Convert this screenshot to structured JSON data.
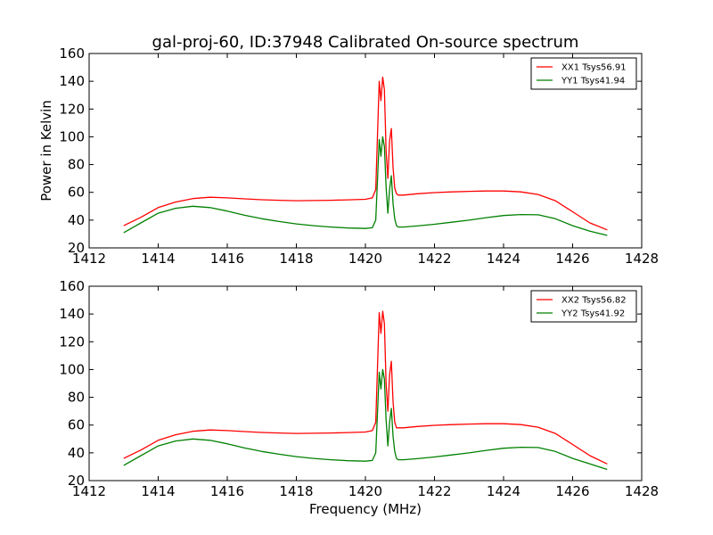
{
  "title": "gal-proj-60, ID:37948 Calibrated On-source spectrum",
  "chart_data": [
    {
      "type": "line",
      "title": "gal-proj-60, ID:37948 Calibrated On-source spectrum",
      "xlabel": "",
      "ylabel": "Power in Kelvin",
      "xlim": [
        1412,
        1428
      ],
      "ylim": [
        20,
        160
      ],
      "xticks": [
        "1412",
        "1414",
        "1416",
        "1418",
        "1420",
        "1422",
        "1424",
        "1426",
        "1428"
      ],
      "yticks": [
        "20",
        "40",
        "60",
        "80",
        "100",
        "120",
        "140",
        "160"
      ],
      "legend_position": "top-right",
      "grid": false,
      "series": [
        {
          "name": "XX1 Tsys56.91",
          "color": "#ff0000",
          "x": [
            1413.0,
            1413.5,
            1414.0,
            1414.5,
            1415.0,
            1415.5,
            1416.0,
            1416.5,
            1417.0,
            1417.5,
            1418.0,
            1418.5,
            1419.0,
            1419.5,
            1420.0,
            1420.2,
            1420.3,
            1420.4,
            1420.45,
            1420.5,
            1420.55,
            1420.6,
            1420.65,
            1420.7,
            1420.75,
            1420.8,
            1420.85,
            1420.9,
            1420.95,
            1421.0,
            1421.1,
            1421.5,
            1422.0,
            1422.5,
            1423.0,
            1423.5,
            1424.0,
            1424.5,
            1425.0,
            1425.5,
            1426.0,
            1426.5,
            1427.0
          ],
          "values": [
            36,
            42,
            49,
            53,
            55.5,
            56.5,
            56,
            55.3,
            54.7,
            54.3,
            54,
            54.1,
            54.3,
            54.6,
            55,
            56,
            62,
            140,
            126,
            143,
            134,
            90,
            70,
            97,
            106,
            78,
            63,
            59,
            58,
            58,
            58,
            59,
            59.8,
            60.3,
            60.7,
            61,
            61,
            60.3,
            58.5,
            54,
            46,
            38,
            33
          ]
        },
        {
          "name": "YY1 Tsys41.94",
          "color": "#008000",
          "x": [
            1413.0,
            1413.5,
            1414.0,
            1414.5,
            1415.0,
            1415.5,
            1416.0,
            1416.5,
            1417.0,
            1417.5,
            1418.0,
            1418.5,
            1419.0,
            1419.5,
            1420.0,
            1420.2,
            1420.3,
            1420.4,
            1420.45,
            1420.5,
            1420.55,
            1420.6,
            1420.65,
            1420.7,
            1420.75,
            1420.8,
            1420.85,
            1420.9,
            1420.95,
            1421.0,
            1421.1,
            1421.5,
            1422.0,
            1422.5,
            1423.0,
            1423.5,
            1424.0,
            1424.5,
            1425.0,
            1425.5,
            1426.0,
            1426.5,
            1427.0
          ],
          "values": [
            31,
            38,
            45,
            48.5,
            50,
            49,
            46.5,
            43.5,
            41,
            39,
            37.3,
            36,
            35,
            34.3,
            34,
            34.5,
            40,
            98,
            86,
            100,
            93,
            64,
            45,
            62,
            72,
            52,
            41,
            36,
            35,
            35,
            35,
            35.8,
            37,
            38.5,
            40,
            41.8,
            43.3,
            44,
            43.8,
            41,
            36,
            32,
            29
          ]
        }
      ]
    },
    {
      "type": "line",
      "title": "",
      "xlabel": "Frequency (MHz)",
      "ylabel": "",
      "xlim": [
        1412,
        1428
      ],
      "ylim": [
        20,
        160
      ],
      "xticks": [
        "1412",
        "1414",
        "1416",
        "1418",
        "1420",
        "1422",
        "1424",
        "1426",
        "1428"
      ],
      "yticks": [
        "20",
        "40",
        "60",
        "80",
        "100",
        "120",
        "140",
        "160"
      ],
      "legend_position": "top-right",
      "grid": false,
      "series": [
        {
          "name": "XX2 Tsys56.82",
          "color": "#ff0000",
          "x": [
            1413.0,
            1413.5,
            1414.0,
            1414.5,
            1415.0,
            1415.5,
            1416.0,
            1416.5,
            1417.0,
            1417.5,
            1418.0,
            1418.5,
            1419.0,
            1419.5,
            1420.0,
            1420.2,
            1420.3,
            1420.4,
            1420.45,
            1420.5,
            1420.55,
            1420.6,
            1420.65,
            1420.7,
            1420.75,
            1420.8,
            1420.85,
            1420.9,
            1420.95,
            1421.0,
            1421.1,
            1421.5,
            1422.0,
            1422.5,
            1423.0,
            1423.5,
            1424.0,
            1424.5,
            1425.0,
            1425.5,
            1426.0,
            1426.5,
            1427.0
          ],
          "values": [
            36,
            42,
            49,
            53,
            55.5,
            56.5,
            56,
            55.3,
            54.7,
            54.3,
            54,
            54.1,
            54.3,
            54.6,
            55,
            56,
            62,
            141,
            126,
            142,
            133,
            90,
            70,
            96,
            106,
            77,
            62,
            58,
            58,
            58,
            58,
            59,
            59.8,
            60.3,
            60.7,
            61,
            61,
            60.3,
            58.5,
            54,
            46,
            38,
            32
          ]
        },
        {
          "name": "YY2 Tsys41.92",
          "color": "#008000",
          "x": [
            1413.0,
            1413.5,
            1414.0,
            1414.5,
            1415.0,
            1415.5,
            1416.0,
            1416.5,
            1417.0,
            1417.5,
            1418.0,
            1418.5,
            1419.0,
            1419.5,
            1420.0,
            1420.2,
            1420.3,
            1420.4,
            1420.45,
            1420.5,
            1420.55,
            1420.6,
            1420.65,
            1420.7,
            1420.75,
            1420.8,
            1420.85,
            1420.9,
            1420.95,
            1421.0,
            1421.1,
            1421.5,
            1422.0,
            1422.5,
            1423.0,
            1423.5,
            1424.0,
            1424.5,
            1425.0,
            1425.5,
            1426.0,
            1426.5,
            1427.0
          ],
          "values": [
            31,
            38,
            45,
            48.5,
            50,
            49,
            46.5,
            43.5,
            41,
            39,
            37.3,
            36,
            35,
            34.3,
            34,
            34.5,
            40,
            98,
            86,
            100,
            93,
            64,
            45,
            62,
            72,
            52,
            41,
            36,
            35,
            35,
            35,
            35.8,
            37,
            38.5,
            40,
            41.8,
            43.3,
            44,
            43.8,
            41,
            36,
            32,
            28
          ]
        }
      ]
    }
  ]
}
